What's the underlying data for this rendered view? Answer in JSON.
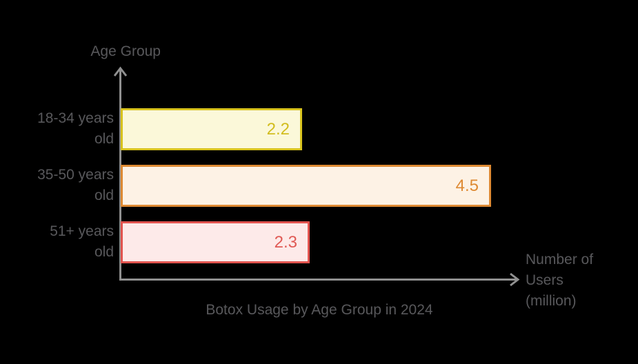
{
  "chart_data": {
    "type": "bar",
    "orientation": "horizontal",
    "title": "Botox Usage by Age Group in 2024",
    "xlabel": "Number of Users (million)",
    "ylabel": "Age Group",
    "categories": [
      "18-34 years old",
      "35-50 years old",
      "51+ years old"
    ],
    "values": [
      2.2,
      4.5,
      2.3
    ],
    "xlim": [
      0,
      4.85
    ],
    "grid": false,
    "legend": "none",
    "data_labels": [
      "2.2",
      "4.5",
      "2.3"
    ],
    "series_colors": [
      {
        "name": "18-34",
        "fill": "#fbf8d9",
        "border": "#d8c31d",
        "label": "#d2bd1e"
      },
      {
        "name": "35-50",
        "fill": "#fdf2e5",
        "border": "#de8a33",
        "label": "#de8a33"
      },
      {
        "name": "51+",
        "fill": "#fdeae9",
        "border": "#e2544f",
        "label": "#e05a55"
      }
    ]
  },
  "display": {
    "background": "#000000",
    "text_color": "#58585b",
    "axis_color": "#909090",
    "category_lines": [
      [
        "18-34 years",
        "old"
      ],
      [
        "35-50 years",
        "old"
      ],
      [
        "51+ years",
        "old"
      ]
    ],
    "xlabel_lines": [
      "Number of",
      "Users",
      "(million)"
    ]
  }
}
